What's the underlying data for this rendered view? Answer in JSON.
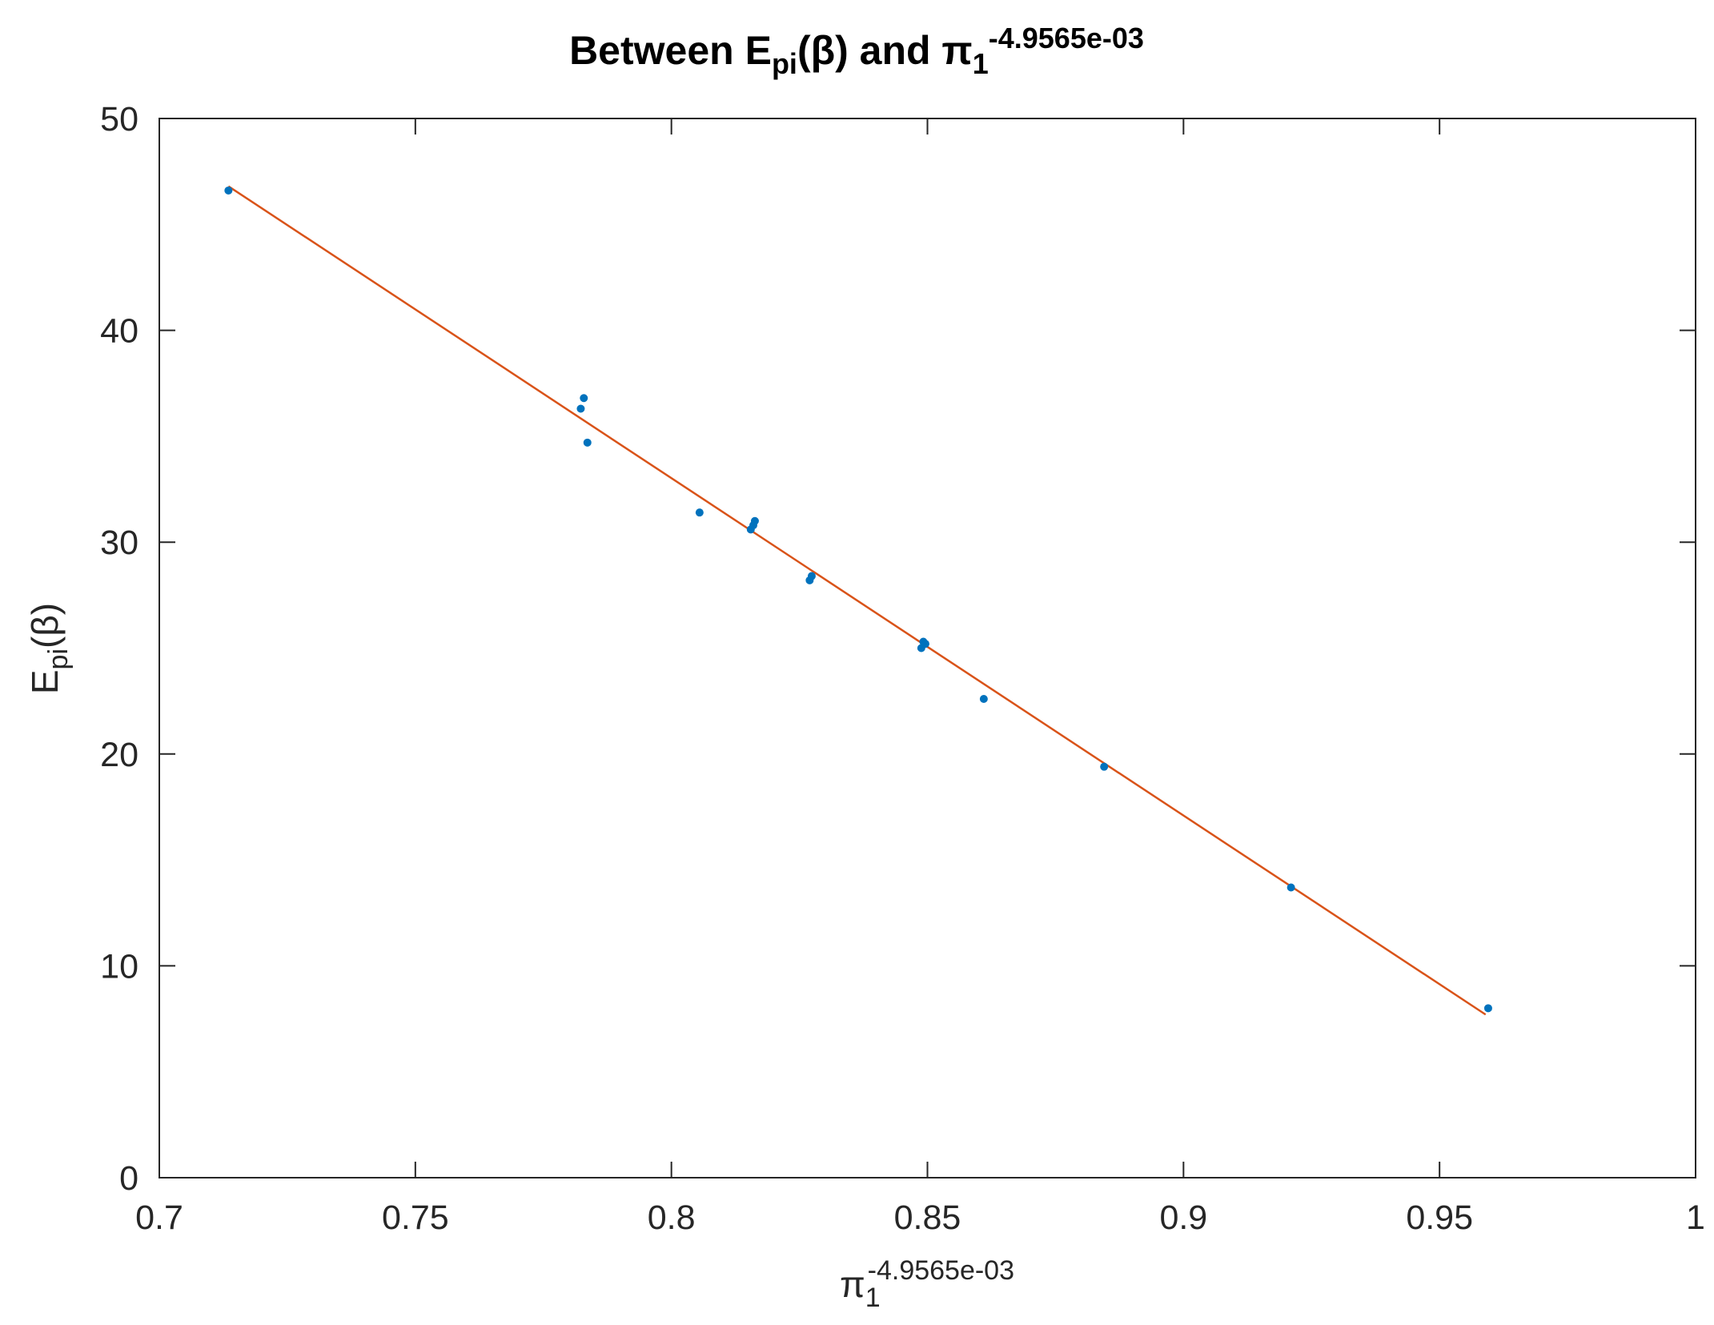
{
  "chart_data": {
    "type": "scatter",
    "title": {
      "prefix": "Between E",
      "sub1": "pi",
      "mid": "(β) and π",
      "sub2": "1",
      "sup": "-4.9565e-03"
    },
    "xlabel": {
      "base": "π",
      "sub": "1",
      "sup": "-4.9565e-03"
    },
    "ylabel": {
      "base": "E",
      "sub": "pi",
      "rest": "(β)"
    },
    "xlim": [
      0.7,
      1.0
    ],
    "ylim": [
      0,
      50
    ],
    "xticks": [
      0.7,
      0.75,
      0.8,
      0.85,
      0.9,
      0.95,
      1
    ],
    "xtick_labels": [
      "0.7",
      "0.75",
      "0.8",
      "0.85",
      "0.9",
      "0.95",
      "1"
    ],
    "yticks": [
      0,
      10,
      20,
      30,
      40,
      50
    ],
    "ytick_labels": [
      "0",
      "10",
      "20",
      "30",
      "40",
      "50"
    ],
    "grid": false,
    "series": [
      {
        "kind": "scatter",
        "color": "#0072BD",
        "points": [
          {
            "x": 0.7135,
            "y": 46.6
          },
          {
            "x": 0.7823,
            "y": 36.3
          },
          {
            "x": 0.7829,
            "y": 36.8
          },
          {
            "x": 0.7836,
            "y": 34.7
          },
          {
            "x": 0.8055,
            "y": 31.4
          },
          {
            "x": 0.8155,
            "y": 30.6
          },
          {
            "x": 0.816,
            "y": 30.8
          },
          {
            "x": 0.8163,
            "y": 31.0
          },
          {
            "x": 0.827,
            "y": 28.2
          },
          {
            "x": 0.8274,
            "y": 28.4
          },
          {
            "x": 0.8488,
            "y": 25.0
          },
          {
            "x": 0.8492,
            "y": 25.3
          },
          {
            "x": 0.8496,
            "y": 25.2
          },
          {
            "x": 0.861,
            "y": 22.6
          },
          {
            "x": 0.8845,
            "y": 19.4
          },
          {
            "x": 0.921,
            "y": 13.7
          },
          {
            "x": 0.9595,
            "y": 8.0
          }
        ]
      },
      {
        "kind": "line",
        "color": "#D95319",
        "points": [
          {
            "x": 0.7135,
            "y": 46.8
          },
          {
            "x": 0.959,
            "y": 7.7
          }
        ]
      }
    ]
  }
}
